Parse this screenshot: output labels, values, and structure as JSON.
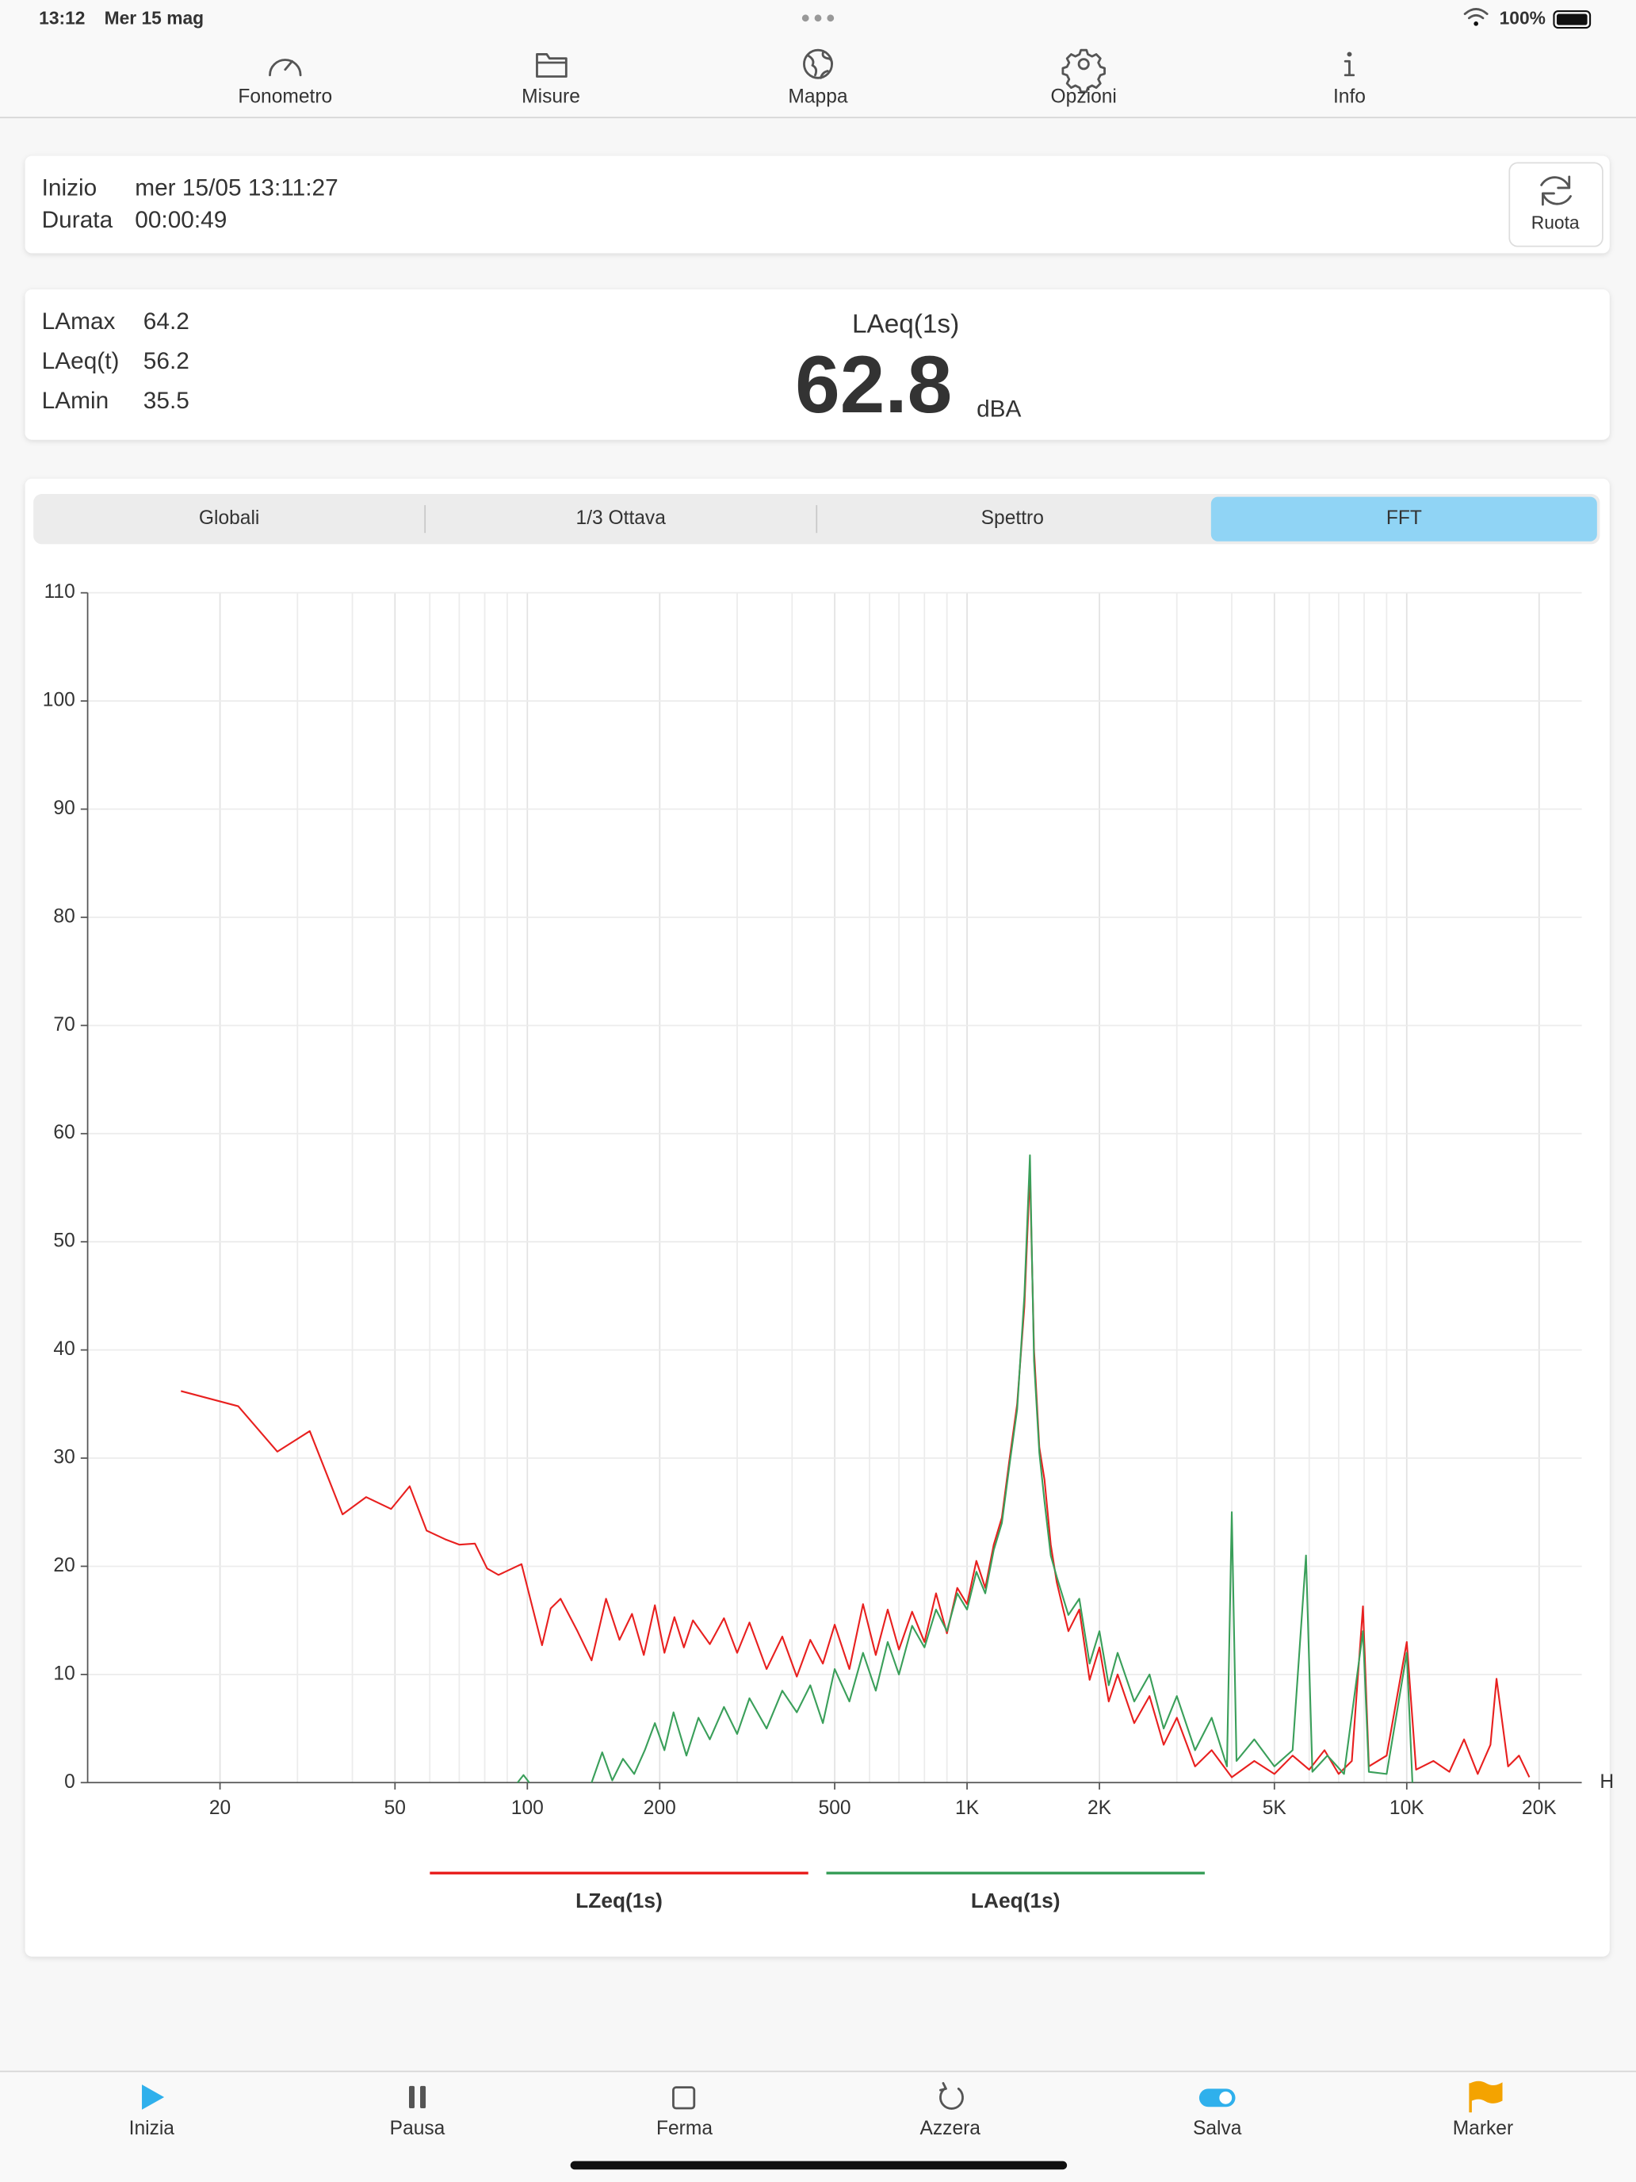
{
  "status_bar": {
    "time": "13:12",
    "date": "Mer 15 mag",
    "battery": "100%"
  },
  "tabs": [
    "Fonometro",
    "Misure",
    "Mappa",
    "Opzioni",
    "Info"
  ],
  "active_tab": 0,
  "session": {
    "start_label": "Inizio",
    "start": "mer 15/05 13:11:27",
    "duration_label": "Durata",
    "duration": "00:00:49",
    "rotate_button": "Ruota"
  },
  "levels": {
    "rows": [
      {
        "label": "LAmax",
        "value": 64.2
      },
      {
        "label": "LAeq(t)",
        "value": 56.2
      },
      {
        "label": "LAmin",
        "value": 35.5
      }
    ],
    "main_label": "LAeq(1s)",
    "main_value": 62.8,
    "unit": "dBA"
  },
  "segments": {
    "options": [
      "Globali",
      "1/3 Ottava",
      "Spettro",
      "FFT"
    ],
    "selected": 3
  },
  "chart_data": {
    "type": "line",
    "x_label": "H",
    "xscale": "log",
    "xlim": [
      10,
      25000
    ],
    "xticks": [
      20,
      50,
      100,
      200,
      500,
      {
        "value": 1000,
        "label": "1K"
      },
      {
        "value": 2000,
        "label": "2K"
      },
      {
        "value": 5000,
        "label": "5K"
      },
      {
        "value": 10000,
        "label": "10K"
      },
      {
        "value": 20000,
        "label": "20K"
      }
    ],
    "xminor": [
      30,
      40,
      60,
      70,
      80,
      90,
      300,
      400,
      600,
      700,
      800,
      900,
      3000,
      4000,
      6000,
      7000,
      8000,
      9000
    ],
    "ylim": [
      0,
      110
    ],
    "yticks": [
      0,
      10,
      20,
      30,
      40,
      50,
      60,
      70,
      80,
      90,
      100,
      110
    ],
    "grid": true,
    "legend": "bottom",
    "series": [
      {
        "name": "LZeq(1s)",
        "color": "#e8201f",
        "x": [
          16.3,
          22,
          27,
          32,
          38,
          43,
          49,
          54,
          59,
          65,
          70,
          76,
          81,
          86,
          97,
          108,
          113,
          119,
          130,
          140,
          151,
          162,
          173,
          184,
          195,
          205,
          216,
          227,
          238,
          260,
          280,
          300,
          320,
          350,
          380,
          410,
          440,
          470,
          500,
          540,
          580,
          620,
          660,
          700,
          750,
          800,
          850,
          900,
          950,
          1000,
          1050,
          1100,
          1150,
          1200,
          1250,
          1300,
          1350,
          1390,
          1420,
          1460,
          1500,
          1550,
          1600,
          1700,
          1800,
          1900,
          2000,
          2100,
          2200,
          2400,
          2600,
          2800,
          3000,
          3300,
          3600,
          4000,
          4500,
          5000,
          5500,
          6000,
          6500,
          7000,
          7500,
          7950,
          8200,
          9000,
          10000,
          10500,
          11500,
          12500,
          13500,
          14500,
          15500,
          16000,
          17000,
          18000,
          19000
        ],
        "values": [
          36.2,
          34.8,
          30.6,
          32.5,
          24.8,
          26.4,
          25.3,
          27.4,
          23.3,
          22.5,
          22.0,
          22.1,
          19.8,
          19.2,
          20.2,
          12.7,
          16.1,
          17.0,
          14.0,
          11.3,
          17.0,
          13.2,
          15.6,
          11.8,
          16.4,
          12.0,
          15.3,
          12.5,
          15.0,
          12.8,
          15.2,
          12.0,
          14.8,
          10.5,
          13.5,
          9.8,
          13.2,
          11.0,
          14.6,
          10.5,
          16.5,
          11.8,
          16.0,
          12.3,
          15.8,
          13.0,
          17.5,
          13.8,
          18.0,
          16.5,
          20.5,
          18.0,
          22.0,
          24.5,
          30.0,
          35.0,
          44.0,
          56.5,
          40.0,
          31.0,
          28.0,
          22.0,
          18.5,
          14.0,
          16.0,
          9.5,
          12.5,
          7.5,
          10.0,
          5.5,
          8.0,
          3.5,
          6.0,
          1.5,
          3.0,
          0.5,
          2.0,
          0.8,
          2.5,
          1.2,
          3.0,
          0.8,
          2.0,
          16.3,
          1.5,
          2.5,
          13.0,
          1.2,
          2.0,
          1.0,
          4.0,
          0.8,
          3.5,
          9.6,
          1.5,
          2.5,
          0.5
        ]
      },
      {
        "name": "LAeq(1s)",
        "color": "#3a9f5a",
        "x": [
          95,
          98,
          101,
          120,
          140,
          148,
          156,
          165,
          175,
          185,
          195,
          205,
          215,
          230,
          245,
          260,
          280,
          300,
          320,
          350,
          380,
          410,
          440,
          470,
          500,
          540,
          580,
          620,
          660,
          700,
          750,
          800,
          850,
          900,
          950,
          1000,
          1050,
          1100,
          1150,
          1200,
          1250,
          1300,
          1350,
          1390,
          1420,
          1460,
          1500,
          1550,
          1600,
          1700,
          1800,
          1900,
          2000,
          2100,
          2200,
          2400,
          2600,
          2800,
          3000,
          3300,
          3600,
          3900,
          4000,
          4100,
          4500,
          5000,
          5500,
          5900,
          6100,
          6600,
          7200,
          7950,
          8200,
          9000,
          10000,
          10300
        ],
        "values": [
          0.0,
          0.7,
          0.0,
          null,
          0.0,
          2.8,
          0.2,
          2.2,
          0.8,
          3.0,
          5.5,
          3.0,
          6.5,
          2.5,
          6.0,
          4.0,
          7.0,
          4.5,
          7.8,
          5.0,
          8.5,
          6.5,
          9.0,
          5.5,
          10.5,
          7.5,
          12.0,
          8.5,
          13.0,
          10.0,
          14.5,
          12.5,
          16.0,
          14.0,
          17.5,
          16.0,
          19.5,
          17.5,
          21.5,
          24.0,
          29.5,
          34.5,
          45.0,
          58.0,
          39.0,
          30.5,
          26.0,
          21.0,
          19.0,
          15.5,
          17.0,
          11.0,
          14.0,
          9.0,
          12.0,
          7.5,
          10.0,
          5.0,
          8.0,
          3.0,
          6.0,
          1.5,
          25.0,
          2.0,
          4.0,
          1.5,
          3.0,
          21.0,
          1.0,
          2.5,
          0.8,
          14.0,
          1.0,
          0.8,
          12.0,
          0.0
        ]
      }
    ]
  },
  "toolbar": [
    {
      "label": "Inizia",
      "color": "#2fb0ec"
    },
    {
      "label": "Pausa",
      "color": "#555555"
    },
    {
      "label": "Ferma",
      "color": "#555555"
    },
    {
      "label": "Azzera",
      "color": "#555555"
    },
    {
      "label": "Salva",
      "color": "#2fb0ec"
    },
    {
      "label": "Marker",
      "color": "#f4a300"
    }
  ]
}
